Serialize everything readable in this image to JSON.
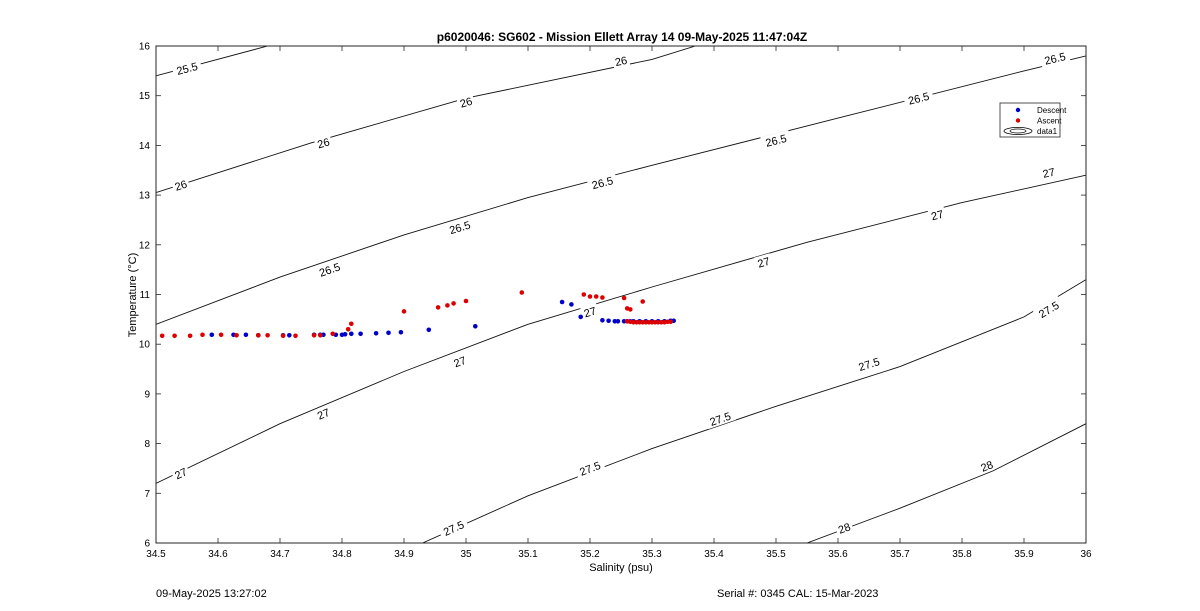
{
  "chart_data": {
    "type": "scatter",
    "title": "p6020046: SG602 - Mission Ellett Array 14 09-May-2025 11:47:04Z",
    "xlabel": "Salinity (psu)",
    "ylabel": "Temperature (°C)",
    "xlim": [
      34.5,
      36
    ],
    "ylim": [
      6,
      16
    ],
    "xticks": [
      34.5,
      34.6,
      34.7,
      34.8,
      34.9,
      35,
      35.1,
      35.2,
      35.3,
      35.4,
      35.5,
      35.6,
      35.7,
      35.8,
      35.9,
      36
    ],
    "xtick_labels": [
      "34.5",
      "34.6",
      "34.7",
      "34.8",
      "34.9",
      "35",
      "35.1",
      "35.2",
      "35.3",
      "35.4",
      "35.5",
      "35.6",
      "35.7",
      "35.8",
      "35.9",
      "36"
    ],
    "yticks": [
      6,
      7,
      8,
      9,
      10,
      11,
      12,
      13,
      14,
      15,
      16
    ],
    "ytick_labels": [
      "6",
      "7",
      "8",
      "9",
      "10",
      "11",
      "12",
      "13",
      "14",
      "15",
      "16"
    ],
    "grid": false,
    "legend": {
      "position": "top-right",
      "entries": [
        {
          "label": "Descent",
          "color": "#0000cc",
          "marker": "dot"
        },
        {
          "label": "Ascent",
          "color": "#dd0000",
          "marker": "dot"
        },
        {
          "label": "data1",
          "color": "#000000",
          "marker": "contour"
        }
      ]
    },
    "contours": [
      {
        "level": "25.5",
        "points": [
          [
            34.5,
            15.4
          ],
          [
            34.68,
            16.0
          ]
        ]
      },
      {
        "level": "26",
        "points": [
          [
            34.5,
            13.05
          ],
          [
            34.75,
            14.05
          ],
          [
            35.0,
            14.95
          ],
          [
            35.3,
            15.73
          ],
          [
            35.37,
            16.0
          ]
        ]
      },
      {
        "level": "26.5",
        "points": [
          [
            34.5,
            10.4
          ],
          [
            34.7,
            11.35
          ],
          [
            34.9,
            12.2
          ],
          [
            35.1,
            12.95
          ],
          [
            35.3,
            13.6
          ],
          [
            35.6,
            14.55
          ],
          [
            35.9,
            15.5
          ],
          [
            36.0,
            15.8
          ]
        ]
      },
      {
        "level": "27",
        "points": [
          [
            34.5,
            7.2
          ],
          [
            34.7,
            8.4
          ],
          [
            34.9,
            9.45
          ],
          [
            35.1,
            10.4
          ],
          [
            35.3,
            11.15
          ],
          [
            35.55,
            12.05
          ],
          [
            35.8,
            12.85
          ],
          [
            36.0,
            13.4
          ]
        ]
      },
      {
        "level": "27.5",
        "points": [
          [
            34.93,
            6.0
          ],
          [
            35.1,
            6.95
          ],
          [
            35.3,
            7.9
          ],
          [
            35.5,
            8.75
          ],
          [
            35.7,
            9.55
          ],
          [
            35.9,
            10.55
          ],
          [
            36.0,
            11.3
          ]
        ]
      },
      {
        "level": "28",
        "points": [
          [
            35.55,
            6.0
          ],
          [
            35.7,
            6.7
          ],
          [
            35.85,
            7.45
          ],
          [
            36.0,
            8.4
          ]
        ]
      }
    ],
    "contour_label_texts": [
      "25.5",
      "26",
      "26",
      "26",
      "26.5",
      "26.5",
      "26.5",
      "26.5",
      "26.5",
      "27",
      "27",
      "27",
      "27",
      "27",
      "27",
      "27.5",
      "27.5",
      "27.5",
      "27.5",
      "27.5",
      "28",
      "28"
    ],
    "contour_labels": [
      {
        "text": "25.5",
        "level_index": 0,
        "at": [
          34.55,
          15.55
        ]
      },
      {
        "text": "26",
        "level_index": 1,
        "at": [
          34.54,
          13.2
        ]
      },
      {
        "text": "26",
        "level_index": 1,
        "at": [
          34.77,
          14.05
        ]
      },
      {
        "text": "26",
        "level_index": 1,
        "at": [
          35.0,
          14.87
        ]
      },
      {
        "text": "26",
        "level_index": 1,
        "at": [
          35.25,
          15.7
        ]
      },
      {
        "text": "26.5",
        "level_index": 2,
        "at": [
          34.78,
          11.5
        ]
      },
      {
        "text": "26.5",
        "level_index": 2,
        "at": [
          34.99,
          12.35
        ]
      },
      {
        "text": "26.5",
        "level_index": 2,
        "at": [
          35.22,
          13.25
        ]
      },
      {
        "text": "26.5",
        "level_index": 2,
        "at": [
          35.5,
          14.1
        ]
      },
      {
        "text": "26.5",
        "level_index": 2,
        "at": [
          35.73,
          14.95
        ]
      },
      {
        "text": "26.5",
        "level_index": 2,
        "at": [
          35.95,
          15.75
        ]
      },
      {
        "text": "27",
        "level_index": 3,
        "at": [
          34.54,
          7.4
        ]
      },
      {
        "text": "27",
        "level_index": 3,
        "at": [
          34.77,
          8.6
        ]
      },
      {
        "text": "27",
        "level_index": 3,
        "at": [
          34.99,
          9.65
        ]
      },
      {
        "text": "27",
        "level_index": 3,
        "at": [
          35.2,
          10.65
        ]
      },
      {
        "text": "27",
        "level_index": 3,
        "at": [
          35.48,
          11.65
        ]
      },
      {
        "text": "27",
        "level_index": 3,
        "at": [
          35.76,
          12.6
        ]
      },
      {
        "text": "27",
        "level_index": 3,
        "at": [
          35.94,
          13.45
        ]
      },
      {
        "text": "27.5",
        "level_index": 4,
        "at": [
          34.98,
          6.3
        ]
      },
      {
        "text": "27.5",
        "level_index": 4,
        "at": [
          35.2,
          7.5
        ]
      },
      {
        "text": "27.5",
        "level_index": 4,
        "at": [
          35.41,
          8.5
        ]
      },
      {
        "text": "27.5",
        "level_index": 4,
        "at": [
          35.65,
          9.6
        ]
      },
      {
        "text": "27.5",
        "level_index": 4,
        "at": [
          35.94,
          10.7
        ]
      },
      {
        "text": "28",
        "level_index": 5,
        "at": [
          35.61,
          6.3
        ]
      },
      {
        "text": "28",
        "level_index": 5,
        "at": [
          35.84,
          7.55
        ]
      }
    ],
    "series": [
      {
        "name": "Descent",
        "color": "#0000cc",
        "points": [
          [
            34.59,
            10.19
          ],
          [
            34.625,
            10.19
          ],
          [
            34.645,
            10.19
          ],
          [
            34.665,
            10.18
          ],
          [
            34.705,
            10.18
          ],
          [
            34.715,
            10.18
          ],
          [
            34.755,
            10.19
          ],
          [
            34.765,
            10.19
          ],
          [
            34.77,
            10.19
          ],
          [
            34.79,
            10.19
          ],
          [
            34.8,
            10.19
          ],
          [
            34.805,
            10.2
          ],
          [
            34.815,
            10.21
          ],
          [
            34.83,
            10.21
          ],
          [
            34.855,
            10.22
          ],
          [
            34.875,
            10.23
          ],
          [
            34.895,
            10.24
          ],
          [
            34.94,
            10.29
          ],
          [
            35.015,
            10.36
          ],
          [
            35.155,
            10.85
          ],
          [
            35.17,
            10.8
          ],
          [
            35.185,
            10.55
          ],
          [
            35.22,
            10.48
          ],
          [
            35.23,
            10.47
          ],
          [
            35.24,
            10.46
          ],
          [
            35.245,
            10.46
          ],
          [
            35.255,
            10.46
          ],
          [
            35.26,
            10.46
          ],
          [
            35.265,
            10.46
          ],
          [
            35.27,
            10.46
          ],
          [
            35.28,
            10.46
          ],
          [
            35.29,
            10.46
          ],
          [
            35.3,
            10.46
          ],
          [
            35.31,
            10.46
          ],
          [
            35.32,
            10.46
          ],
          [
            35.33,
            10.47
          ],
          [
            35.335,
            10.47
          ]
        ]
      },
      {
        "name": "Ascent",
        "color": "#dd0000",
        "points": [
          [
            34.51,
            10.17
          ],
          [
            34.53,
            10.17
          ],
          [
            34.555,
            10.17
          ],
          [
            34.575,
            10.19
          ],
          [
            34.605,
            10.19
          ],
          [
            34.63,
            10.18
          ],
          [
            34.665,
            10.18
          ],
          [
            34.68,
            10.18
          ],
          [
            34.705,
            10.17
          ],
          [
            34.725,
            10.17
          ],
          [
            34.755,
            10.18
          ],
          [
            34.765,
            10.18
          ],
          [
            34.785,
            10.21
          ],
          [
            34.81,
            10.3
          ],
          [
            34.815,
            10.41
          ],
          [
            34.9,
            10.66
          ],
          [
            34.955,
            10.74
          ],
          [
            34.97,
            10.78
          ],
          [
            34.98,
            10.82
          ],
          [
            35.0,
            10.87
          ],
          [
            35.09,
            11.04
          ],
          [
            35.19,
            11.0
          ],
          [
            35.2,
            10.96
          ],
          [
            35.21,
            10.96
          ],
          [
            35.22,
            10.94
          ],
          [
            35.255,
            10.93
          ],
          [
            35.26,
            10.72
          ],
          [
            35.265,
            10.7
          ],
          [
            35.285,
            10.86
          ],
          [
            35.26,
            10.46
          ],
          [
            35.265,
            10.45
          ],
          [
            35.27,
            10.44
          ],
          [
            35.275,
            10.44
          ],
          [
            35.28,
            10.44
          ],
          [
            35.285,
            10.44
          ],
          [
            35.29,
            10.44
          ],
          [
            35.295,
            10.44
          ],
          [
            35.3,
            10.44
          ],
          [
            35.305,
            10.44
          ],
          [
            35.31,
            10.44
          ],
          [
            35.315,
            10.44
          ],
          [
            35.32,
            10.44
          ],
          [
            35.325,
            10.45
          ],
          [
            35.33,
            10.45
          ]
        ]
      }
    ]
  },
  "footer": {
    "timestamp": "09-May-2025 13:27:02",
    "serial": "Serial #: 0345  CAL: 15-Mar-2023"
  }
}
